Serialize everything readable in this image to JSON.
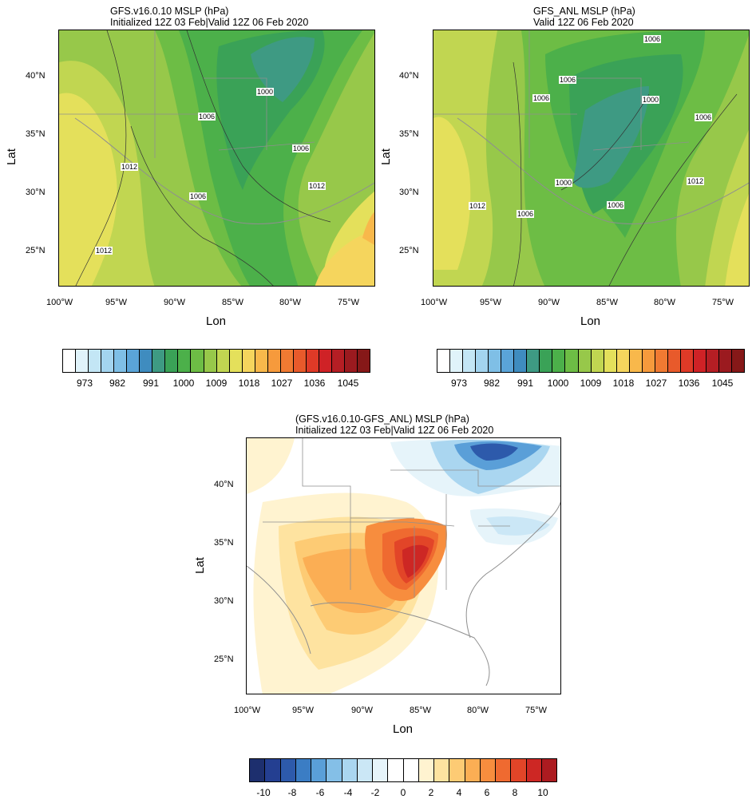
{
  "panels": {
    "left": {
      "title_line1": "GFS.v16.0.10 MSLP (hPa)",
      "title_line2": "Initialized 12Z 03 Feb|Valid 12Z 06 Feb 2020",
      "lon_ticks": [
        "100°W",
        "95°W",
        "90°W",
        "85°W",
        "80°W",
        "75°W"
      ],
      "lat_ticks": [
        "40°N",
        "35°N",
        "30°N",
        "25°N"
      ],
      "xlabel": "Lon",
      "ylabel": "Lat",
      "contour_labels": [
        "1000",
        "1006",
        "1006",
        "1006",
        "1012",
        "1012",
        "1012"
      ]
    },
    "right": {
      "title_line1": "GFS_ANL MSLP (hPa)",
      "title_line2": "Valid 12Z 06 Feb 2020",
      "lon_ticks": [
        "100°W",
        "95°W",
        "90°W",
        "85°W",
        "80°W",
        "75°W"
      ],
      "lat_ticks": [
        "40°N",
        "35°N",
        "30°N",
        "25°N"
      ],
      "xlabel": "Lon",
      "ylabel": "Lat",
      "contour_labels": [
        "1006",
        "1006",
        "1006",
        "1000",
        "1000",
        "1006",
        "1006",
        "1006",
        "1012",
        "1012"
      ]
    },
    "bottom": {
      "title_line1": "(GFS.v16.0.10-GFS_ANL) MSLP (hPa)",
      "title_line2": "Initialized 12Z 03 Feb|Valid 12Z 06 Feb 2020",
      "lon_ticks": [
        "100°W",
        "95°W",
        "90°W",
        "85°W",
        "80°W",
        "75°W"
      ],
      "lat_ticks": [
        "40°N",
        "35°N",
        "30°N",
        "25°N"
      ],
      "xlabel": "Lon",
      "ylabel": "Lat"
    }
  },
  "colorbars": {
    "mslp": {
      "labels": [
        "973",
        "982",
        "991",
        "1000",
        "1009",
        "1018",
        "1027",
        "1036",
        "1045"
      ],
      "colors": [
        "#ffffff",
        "#e0f3fa",
        "#c3e6f5",
        "#a3d4ef",
        "#7fbfe6",
        "#5aa4d8",
        "#3f8cbf",
        "#3e9a83",
        "#3aa257",
        "#4cb04a",
        "#6dbd45",
        "#97c84a",
        "#c1d651",
        "#e4e05b",
        "#f5d55d",
        "#f8b84b",
        "#f69a3c",
        "#f07a32",
        "#e85a2b",
        "#df3a27",
        "#cf2226",
        "#b51e24",
        "#9b1a1f",
        "#861818"
      ]
    },
    "diff": {
      "labels": [
        "-10",
        "-8",
        "-6",
        "-4",
        "-2",
        "0",
        "2",
        "4",
        "6",
        "8",
        "10"
      ],
      "colors": [
        "#1d2f6e",
        "#243f91",
        "#2d5aab",
        "#3b7dc4",
        "#5a9fd8",
        "#84bfe7",
        "#aad6f0",
        "#cbe7f6",
        "#e6f4fa",
        "#ffffff",
        "#ffffff",
        "#fff3d0",
        "#fee3a0",
        "#fdcb74",
        "#fbae54",
        "#f78d3e",
        "#ef6a30",
        "#e24528",
        "#cd2724",
        "#ac1b20"
      ]
    }
  },
  "colors": {
    "land_border": "#8f8f8f",
    "contour": "#333333"
  }
}
